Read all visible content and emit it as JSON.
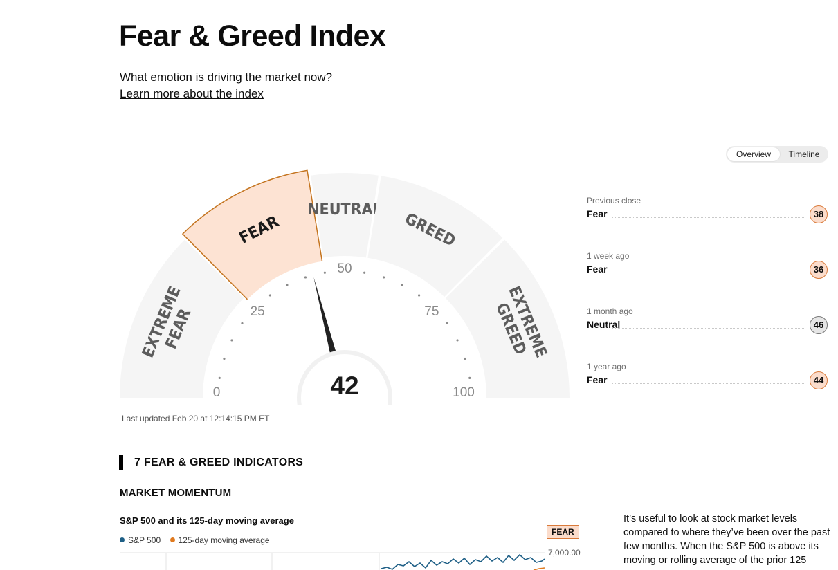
{
  "header": {
    "title": "Fear & Greed Index",
    "subtitle": "What emotion is driving the market now?",
    "learn_more": "Learn more about the index"
  },
  "view_toggle": {
    "options": [
      "Overview",
      "Timeline"
    ],
    "selected": "Overview"
  },
  "gauge": {
    "value": 42,
    "value_label": "42",
    "current_zone": "FEAR",
    "zones": [
      "EXTREME FEAR",
      "FEAR",
      "NEUTRAL",
      "GREED",
      "EXTREME GREED"
    ],
    "scale_labels": [
      "0",
      "25",
      "50",
      "75",
      "100"
    ],
    "colors": {
      "zone": "#f5f5f5",
      "active": "#fde3d3",
      "active_border": "#c4741f",
      "needle": "#222222"
    }
  },
  "last_updated": "Last updated Feb 20 at 12:14:15 PM ET",
  "history": [
    {
      "label": "Previous close",
      "rating": "Fear",
      "score": "38",
      "tone": "fear"
    },
    {
      "label": "1 week ago",
      "rating": "Fear",
      "score": "36",
      "tone": "fear"
    },
    {
      "label": "1 month ago",
      "rating": "Neutral",
      "score": "46",
      "tone": "neutral"
    },
    {
      "label": "1 year ago",
      "rating": "Fear",
      "score": "44",
      "tone": "fear"
    }
  ],
  "indicators": {
    "heading": "7 FEAR & GREED INDICATORS",
    "section": "MARKET MOMENTUM",
    "chart_title": "S&P 500 and its 125-day moving average",
    "legend": [
      {
        "name": "S&P 500",
        "color": "#1e5f86"
      },
      {
        "name": "125-day moving average",
        "color": "#e07a1f"
      }
    ],
    "badge": "FEAR",
    "y_tick": "7,000.00",
    "description": "It’s useful to look at stock market levels compared to where they’ve been over the past few months. When the S&P 500 is above its moving or rolling average of the prior 125"
  }
}
